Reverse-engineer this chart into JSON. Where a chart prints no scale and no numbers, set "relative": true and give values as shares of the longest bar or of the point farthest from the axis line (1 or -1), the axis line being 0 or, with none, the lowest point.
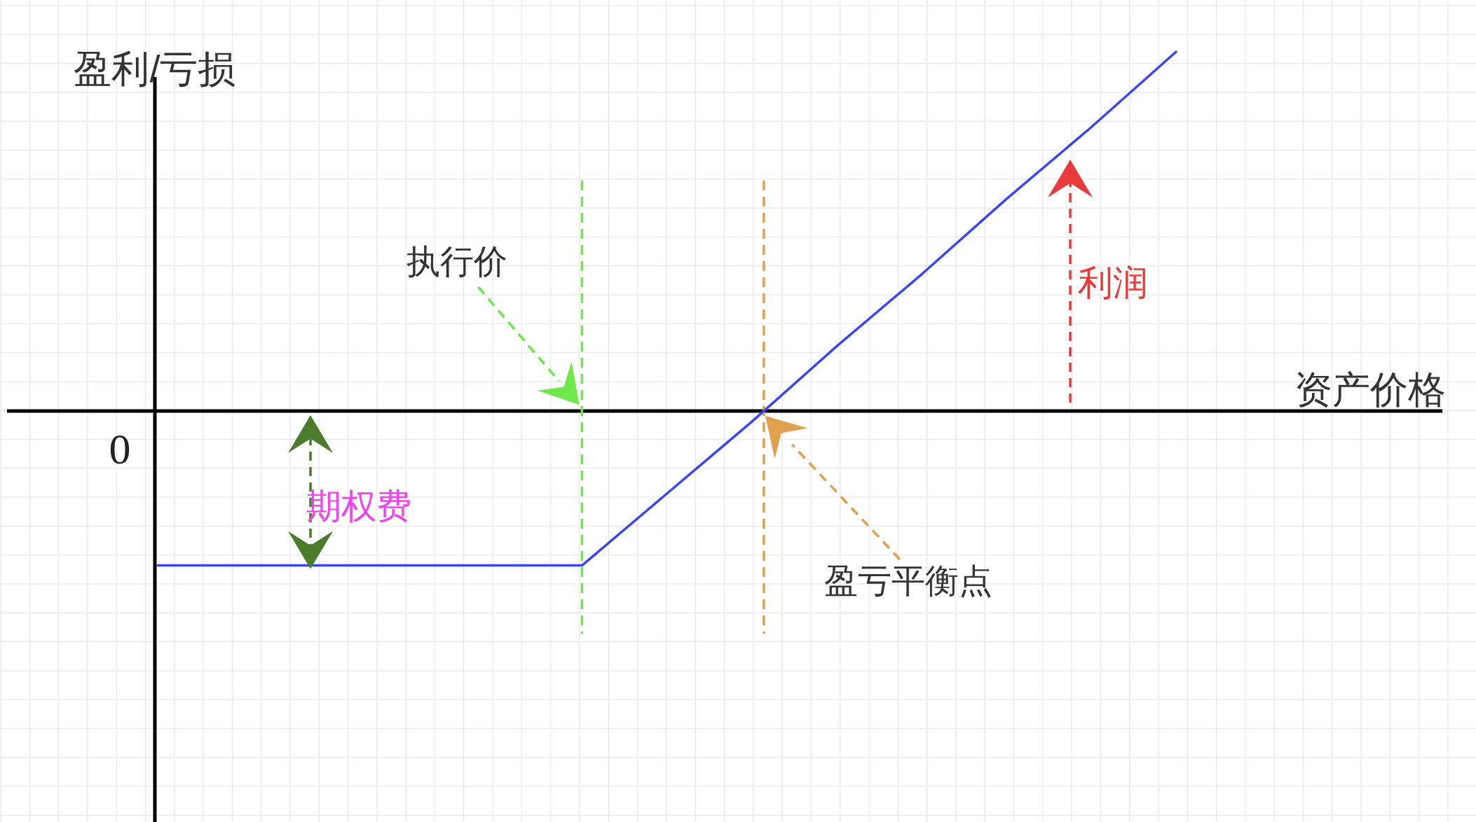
{
  "chart_data": {
    "type": "line",
    "relative": true,
    "xlabel": "资产价格",
    "ylabel": "盈利/亏损",
    "categories": [
      null,
      null,
      null,
      null,
      null,
      null,
      null,
      null,
      null,
      null,
      null,
      null,
      null
    ],
    "series": [
      {
        "color": "#3a46f2",
        "values": [
          -0.43,
          -0.43,
          -0.43,
          -0.43,
          -0.43,
          -0.43,
          -0.23,
          -0.03,
          0.18,
          0.38,
          0.59,
          0.79,
          1
        ]
      }
    ],
    "annotations": [
      "0",
      "执行价",
      {
        "text": "期权费",
        "y": -0.43
      },
      "盈亏平衡点",
      "利润"
    ],
    "grid": true
  }
}
